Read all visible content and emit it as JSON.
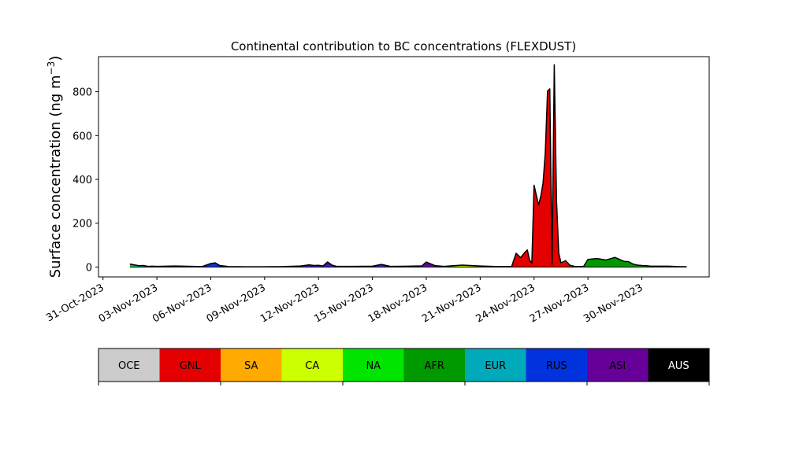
{
  "chart_data": {
    "type": "area",
    "stacked": true,
    "title": "Continental contribution to BC concentrations (FLEXDUST)",
    "xlabel": "",
    "ylabel": "Surface concentration (ng m",
    "ylabel_unit_exponent": "−3",
    "ylabel_suffix": ")",
    "x_type": "date",
    "xlim": [
      "2023-10-30T18:00",
      "2023-12-03T18:00"
    ],
    "ylim": [
      -45,
      960
    ],
    "yticks": [
      0,
      200,
      400,
      600,
      800
    ],
    "xticks": [
      "2023-10-31",
      "2023-11-03",
      "2023-11-06",
      "2023-11-09",
      "2023-11-12",
      "2023-11-15",
      "2023-11-18",
      "2023-11-21",
      "2023-11-24",
      "2023-11-27",
      "2023-11-30"
    ],
    "xtick_labels": [
      "31-Oct-2023",
      "03-Nov-2023",
      "06-Nov-2023",
      "09-Nov-2023",
      "12-Nov-2023",
      "15-Nov-2023",
      "18-Nov-2023",
      "21-Nov-2023",
      "24-Nov-2023",
      "27-Nov-2023",
      "30-Nov-2023"
    ],
    "x": [
      "2023-11-01T12:00",
      "2023-11-01T18:00",
      "2023-11-02T00:00",
      "2023-11-02T06:00",
      "2023-11-02T12:00",
      "2023-11-02T18:00",
      "2023-11-03T00:00",
      "2023-11-04T00:00",
      "2023-11-05T00:00",
      "2023-11-05T12:00",
      "2023-11-06T00:00",
      "2023-11-06T06:00",
      "2023-11-06T12:00",
      "2023-11-07T00:00",
      "2023-11-08T00:00",
      "2023-11-09T00:00",
      "2023-11-10T00:00",
      "2023-11-11T00:00",
      "2023-11-11T12:00",
      "2023-11-11T18:00",
      "2023-11-12T00:00",
      "2023-11-12T06:00",
      "2023-11-12T12:00",
      "2023-11-12T18:00",
      "2023-11-13T00:00",
      "2023-11-14T00:00",
      "2023-11-15T00:00",
      "2023-11-15T06:00",
      "2023-11-15T12:00",
      "2023-11-16T00:00",
      "2023-11-17T00:00",
      "2023-11-17T12:00",
      "2023-11-17T18:00",
      "2023-11-18T00:00",
      "2023-11-18T12:00",
      "2023-11-19T00:00",
      "2023-11-19T12:00",
      "2023-11-20T00:00",
      "2023-11-21T00:00",
      "2023-11-22T00:00",
      "2023-11-22T12:00",
      "2023-11-22T18:00",
      "2023-11-23T00:00",
      "2023-11-23T06:00",
      "2023-11-23T12:00",
      "2023-11-23T15:00",
      "2023-11-23T18:00",
      "2023-11-23T21:00",
      "2023-11-24T00:00",
      "2023-11-24T06:00",
      "2023-11-24T09:00",
      "2023-11-24T12:00",
      "2023-11-24T15:00",
      "2023-11-24T18:00",
      "2023-11-24T21:00",
      "2023-11-25T00:00",
      "2023-11-25T03:00",
      "2023-11-25T06:00",
      "2023-11-25T09:00",
      "2023-11-25T12:00",
      "2023-11-25T18:00",
      "2023-11-26T00:00",
      "2023-11-26T06:00",
      "2023-11-26T12:00",
      "2023-11-26T18:00",
      "2023-11-27T00:00",
      "2023-11-27T12:00",
      "2023-11-28T00:00",
      "2023-11-28T12:00",
      "2023-11-29T00:00",
      "2023-11-29T06:00",
      "2023-11-29T12:00",
      "2023-11-29T18:00",
      "2023-11-30T00:00",
      "2023-11-30T06:00",
      "2023-11-30T12:00",
      "2023-11-30T18:00",
      "2023-12-01T00:00",
      "2023-12-01T12:00",
      "2023-12-02T00:00",
      "2023-12-02T12:00"
    ],
    "series": [
      {
        "name": "OCE",
        "color": "#cccccc",
        "values": [
          0,
          0,
          0,
          0,
          0,
          0,
          0,
          0,
          0,
          0,
          0,
          0,
          0,
          0,
          0,
          0,
          0,
          0,
          0,
          0,
          0,
          0,
          0,
          0,
          0,
          0,
          0,
          0,
          0,
          0,
          0,
          0,
          0,
          0,
          0,
          0,
          0,
          0,
          0,
          0,
          0,
          0,
          0,
          0,
          0,
          0,
          0,
          0,
          0,
          0,
          0,
          0,
          0,
          0,
          0,
          0,
          0,
          0,
          0,
          0,
          0,
          0,
          0,
          0,
          0,
          0,
          0,
          0,
          0,
          0,
          0,
          0,
          0,
          0,
          0,
          0,
          0,
          0,
          0,
          0,
          0
        ]
      },
      {
        "name": "GNL",
        "color": "#e50000",
        "values": [
          0,
          0,
          0,
          0,
          0,
          0,
          0,
          0,
          0,
          0,
          0,
          0,
          0,
          0,
          0,
          0,
          0,
          0,
          0,
          0,
          0,
          0,
          0,
          0,
          0,
          0,
          0,
          0,
          0,
          0,
          0,
          0,
          0,
          0,
          0,
          0,
          0,
          0,
          0,
          0,
          0,
          0,
          60,
          40,
          65,
          75,
          30,
          15,
          370,
          280,
          320,
          380,
          520,
          800,
          810,
          10,
          920,
          300,
          60,
          15,
          25,
          5,
          0,
          0,
          0,
          0,
          0,
          0,
          0,
          0,
          0,
          0,
          0,
          0,
          0,
          0,
          0,
          0,
          0,
          0,
          0
        ]
      },
      {
        "name": "SA",
        "color": "#ffaa00",
        "values": [
          0,
          0,
          0,
          0,
          0,
          0,
          0,
          0,
          0,
          0,
          0,
          0,
          0,
          0,
          0,
          0,
          0,
          0,
          0,
          0,
          0,
          0,
          0,
          0,
          0,
          0,
          0,
          0,
          0,
          0,
          0,
          0,
          0,
          0,
          0,
          0,
          0,
          0,
          0,
          0,
          0,
          0,
          0,
          0,
          0,
          0,
          0,
          0,
          0,
          0,
          0,
          0,
          0,
          0,
          0,
          0,
          0,
          0,
          0,
          0,
          0,
          0,
          0,
          0,
          0,
          0,
          0,
          0,
          0,
          0,
          0,
          0,
          0,
          0,
          0,
          0,
          0,
          0,
          0,
          0,
          0
        ]
      },
      {
        "name": "CA",
        "color": "#ccff00",
        "values": [
          0,
          0,
          0,
          0,
          0,
          0,
          0,
          0,
          0,
          0,
          0,
          0,
          0,
          0,
          0,
          0,
          0,
          0,
          0,
          0,
          0,
          0,
          0,
          0,
          0,
          0,
          0,
          0,
          0,
          0,
          0,
          0,
          0,
          0,
          0,
          0,
          3,
          6,
          3,
          0,
          0,
          0,
          0,
          0,
          0,
          0,
          0,
          0,
          0,
          0,
          0,
          0,
          0,
          0,
          0,
          0,
          0,
          0,
          0,
          0,
          0,
          0,
          0,
          0,
          0,
          0,
          0,
          0,
          0,
          0,
          0,
          0,
          0,
          0,
          0,
          0,
          0,
          0,
          0,
          0,
          0
        ]
      },
      {
        "name": "NA",
        "color": "#00e500",
        "values": [
          6,
          4,
          2,
          3,
          1,
          2,
          1,
          1,
          1,
          1,
          2,
          2,
          1,
          1,
          1,
          1,
          1,
          1,
          1,
          1,
          1,
          1,
          1,
          1,
          1,
          1,
          1,
          1,
          1,
          1,
          1,
          1,
          1,
          1,
          1,
          2,
          2,
          2,
          1,
          1,
          1,
          1,
          1,
          1,
          1,
          1,
          1,
          1,
          1,
          1,
          1,
          1,
          1,
          1,
          1,
          1,
          1,
          1,
          1,
          2,
          2,
          2,
          2,
          1,
          1,
          1,
          2,
          2,
          2,
          2,
          3,
          2,
          2,
          2,
          3,
          2,
          2,
          2,
          2,
          1,
          1
        ]
      },
      {
        "name": "AFR",
        "color": "#009900",
        "values": [
          0,
          0,
          0,
          0,
          0,
          0,
          0,
          0,
          0,
          0,
          0,
          0,
          0,
          0,
          0,
          0,
          0,
          0,
          0,
          0,
          0,
          0,
          0,
          0,
          0,
          0,
          0,
          0,
          0,
          0,
          0,
          0,
          0,
          0,
          0,
          0,
          0,
          0,
          0,
          0,
          0,
          0,
          0,
          0,
          0,
          0,
          0,
          0,
          0,
          0,
          0,
          0,
          0,
          0,
          0,
          0,
          0,
          0,
          0,
          0,
          0,
          0,
          0,
          0,
          0,
          32,
          35,
          28,
          40,
          22,
          20,
          10,
          6,
          4,
          2,
          1,
          1,
          1,
          1,
          0,
          0
        ]
      },
      {
        "name": "EUR",
        "color": "#00aabb",
        "values": [
          3,
          2,
          2,
          1,
          1,
          1,
          1,
          1,
          0,
          0,
          0,
          0,
          0,
          0,
          0,
          0,
          0,
          0,
          0,
          0,
          0,
          0,
          0,
          0,
          0,
          0,
          0,
          0,
          0,
          0,
          0,
          0,
          0,
          0,
          0,
          0,
          0,
          0,
          0,
          0,
          0,
          0,
          0,
          0,
          0,
          0,
          0,
          0,
          0,
          0,
          0,
          0,
          0,
          0,
          0,
          0,
          0,
          0,
          0,
          0,
          0,
          0,
          0,
          0,
          0,
          0,
          0,
          0,
          0,
          0,
          0,
          0,
          0,
          0,
          0,
          0,
          0,
          0,
          0,
          0,
          0
        ]
      },
      {
        "name": "RUS",
        "color": "#0033dd",
        "values": [
          4,
          3,
          2,
          2,
          1,
          1,
          1,
          2,
          1,
          1,
          12,
          15,
          5,
          1,
          0,
          0,
          0,
          0,
          3,
          2,
          2,
          1,
          6,
          3,
          1,
          1,
          1,
          2,
          4,
          1,
          1,
          1,
          1,
          2,
          1,
          0,
          0,
          0,
          0,
          0,
          0,
          0,
          0,
          0,
          0,
          0,
          0,
          0,
          0,
          0,
          0,
          0,
          0,
          0,
          0,
          0,
          0,
          0,
          0,
          0,
          0,
          0,
          0,
          0,
          0,
          0,
          0,
          0,
          0,
          0,
          0,
          0,
          0,
          0,
          0,
          0,
          0,
          0,
          0,
          0,
          0
        ]
      },
      {
        "name": "ASI",
        "color": "#660099",
        "values": [
          1,
          1,
          0,
          1,
          0,
          0,
          0,
          1,
          1,
          0,
          2,
          2,
          1,
          0,
          0,
          0,
          1,
          4,
          6,
          4,
          5,
          3,
          16,
          5,
          1,
          1,
          2,
          5,
          7,
          1,
          2,
          3,
          3,
          20,
          4,
          1,
          1,
          1,
          1,
          1,
          1,
          1,
          2,
          2,
          2,
          2,
          1,
          1,
          2,
          2,
          2,
          2,
          2,
          2,
          2,
          1,
          2,
          2,
          2,
          2,
          2,
          1,
          1,
          1,
          1,
          2,
          2,
          2,
          2,
          2,
          2,
          2,
          1,
          1,
          1,
          1,
          1,
          1,
          1,
          1,
          0
        ]
      },
      {
        "name": "AUS",
        "color": "#000000",
        "values": [
          0,
          0,
          0,
          0,
          0,
          0,
          0,
          0,
          0,
          0,
          0,
          0,
          0,
          0,
          0,
          0,
          0,
          0,
          0,
          0,
          0,
          0,
          0,
          0,
          0,
          0,
          0,
          0,
          0,
          0,
          0,
          0,
          0,
          0,
          0,
          0,
          0,
          0,
          0,
          0,
          0,
          0,
          0,
          0,
          0,
          0,
          0,
          0,
          0,
          0,
          0,
          0,
          0,
          0,
          0,
          0,
          0,
          0,
          0,
          0,
          0,
          0,
          0,
          0,
          0,
          0,
          0,
          0,
          0,
          0,
          0,
          0,
          0,
          0,
          0,
          0,
          0,
          0,
          0,
          0,
          0
        ]
      }
    ],
    "legend": {
      "placement": "bottom",
      "entries": [
        "OCE",
        "GNL",
        "SA",
        "CA",
        "NA",
        "AFR",
        "EUR",
        "RUS",
        "ASI",
        "AUS"
      ],
      "text_colors": [
        "#000000",
        "#000000",
        "#000000",
        "#000000",
        "#000000",
        "#000000",
        "#000000",
        "#000000",
        "#000000",
        "#ffffff"
      ]
    },
    "grid": false
  }
}
